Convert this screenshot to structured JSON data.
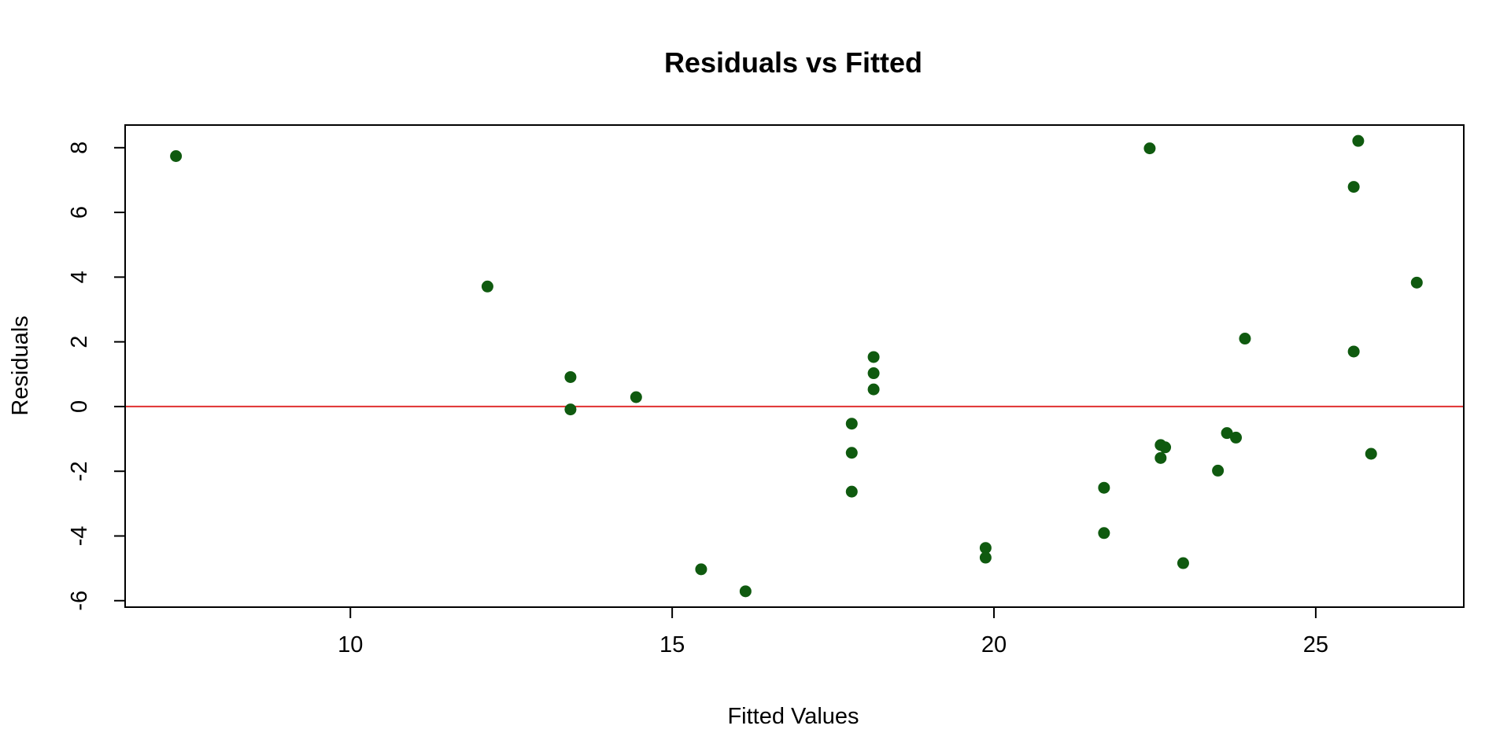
{
  "chart_data": {
    "type": "scatter",
    "title": "Residuals vs Fitted",
    "xlabel": "Fitted Values",
    "ylabel": "Residuals",
    "xlim": [
      6.5,
      27.3
    ],
    "ylim": [
      -6.2,
      8.7
    ],
    "x_ticks": [
      10,
      15,
      20,
      25
    ],
    "y_ticks": [
      -6,
      -4,
      -2,
      0,
      2,
      4,
      6,
      8
    ],
    "x_tick_labels": [
      "10",
      "15",
      "20",
      "25"
    ],
    "y_tick_labels": [
      "-6",
      "-4",
      "-2",
      "0",
      "2",
      "4",
      "6",
      "8"
    ],
    "grid": false,
    "legend": "none",
    "point_color": "#0f5a0f",
    "reference_line": {
      "y": 0,
      "color": "#e03030"
    },
    "points": [
      {
        "x": 7.29,
        "y": 7.74
      },
      {
        "x": 12.13,
        "y": 3.71
      },
      {
        "x": 13.42,
        "y": 0.91
      },
      {
        "x": 13.42,
        "y": -0.09
      },
      {
        "x": 14.44,
        "y": 0.29
      },
      {
        "x": 15.45,
        "y": -5.03
      },
      {
        "x": 16.14,
        "y": -5.71
      },
      {
        "x": 17.79,
        "y": -0.53
      },
      {
        "x": 17.79,
        "y": -1.43
      },
      {
        "x": 17.79,
        "y": -2.63
      },
      {
        "x": 18.13,
        "y": 1.53
      },
      {
        "x": 18.13,
        "y": 1.03
      },
      {
        "x": 18.13,
        "y": 0.53
      },
      {
        "x": 19.87,
        "y": -4.37
      },
      {
        "x": 19.87,
        "y": -4.67
      },
      {
        "x": 21.71,
        "y": -2.51
      },
      {
        "x": 21.71,
        "y": -3.91
      },
      {
        "x": 22.42,
        "y": 7.98
      },
      {
        "x": 22.59,
        "y": -1.19
      },
      {
        "x": 22.66,
        "y": -1.26
      },
      {
        "x": 22.59,
        "y": -1.59
      },
      {
        "x": 22.94,
        "y": -4.84
      },
      {
        "x": 23.48,
        "y": -1.98
      },
      {
        "x": 23.62,
        "y": -0.82
      },
      {
        "x": 23.76,
        "y": -0.96
      },
      {
        "x": 23.9,
        "y": 2.1
      },
      {
        "x": 25.59,
        "y": 6.79
      },
      {
        "x": 25.66,
        "y": 8.21
      },
      {
        "x": 25.59,
        "y": 1.7
      },
      {
        "x": 25.86,
        "y": -1.46
      },
      {
        "x": 26.57,
        "y": 3.83
      }
    ]
  }
}
